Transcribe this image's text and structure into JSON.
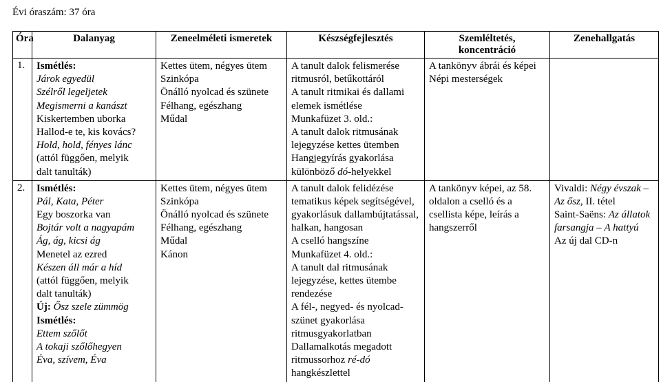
{
  "hours": "Évi óraszám: 37 óra",
  "headers": {
    "ora": "Óra",
    "dalanyag": "Dalanyag",
    "zeneelmelet": "Zeneelméleti ismeretek",
    "keszseg": "Készségfejlesztés",
    "szemleltetes": "Szemléltetés, koncentráció",
    "zenehallgatas": "Zenehallgatás"
  },
  "rows": [
    {
      "num": "1.",
      "dal": [
        {
          "t": "Ismétlés:",
          "b": true
        },
        {
          "t": "Járok egyedül",
          "i": true
        },
        {
          "t": "Szélről legeljetek",
          "i": true
        },
        {
          "t": "Megismerni a kanászt",
          "i": true
        },
        {
          "t": "Kiskertemben uborka"
        },
        {
          "t": "Hallod-e te, kis kovács?"
        },
        {
          "t": "Hold, hold, fényes lánc",
          "i": true
        },
        {
          "t": "(attól függően, melyik"
        },
        {
          "t": "dalt tanulták)"
        }
      ],
      "zen": [
        {
          "t": "Kettes ütem, négyes ütem"
        },
        {
          "t": "Szinkópa"
        },
        {
          "t": "Önálló nyolcad és szünete"
        },
        {
          "t": "Félhang, egészhang"
        },
        {
          "t": "Műdal"
        }
      ],
      "kes": [
        {
          "t": "A tanult dalok felismerése"
        },
        {
          "t": "ritmusról, betűkottáról"
        },
        {
          "t": "A tanult ritmikai és dallami"
        },
        {
          "t": "elemek ismétlése"
        },
        {
          "t": "Munkafüzet 3. old.:"
        },
        {
          "t": "A tanult dalok ritmusának"
        },
        {
          "t": "lejegyzése kettes ütemben"
        },
        {
          "t": "Hangjegyírás gyakorlása"
        },
        {
          "t": "különböző dó-helyekkel",
          "ipart": "különböző "
        }
      ],
      "sze": [
        {
          "t": "A tankönyv ábrái és képei"
        },
        {
          "t": "Népi mesterségek"
        }
      ],
      "hal": []
    },
    {
      "num": "2.",
      "dal": [
        {
          "t": "Ismétlés:",
          "b": true
        },
        {
          "t": "Pál, Kata, Péter",
          "i": true
        },
        {
          "t": "Egy boszorka van"
        },
        {
          "t": "Bojtár volt a nagyapám",
          "i": true
        },
        {
          "t": "Ág, ág, kicsi ág",
          "i": true
        },
        {
          "t": "Menetel az ezred"
        },
        {
          "t": "Készen áll már a híd",
          "i": true
        },
        {
          "t": "(attól függően, melyik"
        },
        {
          "t": "dalt tanulták)"
        },
        {
          "t": "Új: Ősz szele zümmög",
          "bpart": "Új: ",
          "iafter": "Ősz szele zümmög"
        },
        {
          "t": "Ismétlés:",
          "b": true
        },
        {
          "t": "Ettem szőlőt",
          "i": true
        },
        {
          "t": "A tokaji szőlőhegyen",
          "i": true
        },
        {
          "t": "Éva, szívem, Éva",
          "i": true
        }
      ],
      "zen": [
        {
          "t": "Kettes ütem, négyes ütem"
        },
        {
          "t": "Szinkópa"
        },
        {
          "t": "Önálló nyolcad és szünete"
        },
        {
          "t": "Félhang, egészhang"
        },
        {
          "t": "Műdal"
        },
        {
          "t": "Kánon"
        }
      ],
      "kes": [
        {
          "t": "A tanult dalok felidézése"
        },
        {
          "t": "tematikus képek segítségével,"
        },
        {
          "t": "gyakorlásuk dallambújtatással,"
        },
        {
          "t": "halkan, hangosan"
        },
        {
          "t": "A cselló hangszíne"
        },
        {
          "t": "Munkafüzet 4. old.:"
        },
        {
          "t": "A tanult dal ritmusának"
        },
        {
          "t": "lejegyzése, kettes ütembe"
        },
        {
          "t": "rendezése"
        },
        {
          "t": "A fél-, negyed- és nyolcad-"
        },
        {
          "t": "szünet gyakorlása"
        },
        {
          "t": "ritmusgyakorlatban"
        },
        {
          "t": "Dallamalkotás megadott"
        },
        {
          "t": "ritmussorhoz ré-dó",
          "iend": "ré-dó"
        },
        {
          "t": "hangkészlettel"
        }
      ],
      "sze": [
        {
          "t": "A tankönyv képei, az 58."
        },
        {
          "t": "oldalon a cselló és a"
        },
        {
          "t": "csellista képe, leírás a"
        },
        {
          "t": "hangszerről"
        }
      ],
      "hal": [
        {
          "t": "Vivaldi: Négy évszak –",
          "pre": "Vivaldi: ",
          "iafter": "Négy évszak –"
        },
        {
          "t": "Az ősz, II. tétel",
          "iprefix": "Az ősz, ",
          "after": "II. tétel"
        },
        {
          "t": "Saint-Saëns: Az állatok",
          "pre": "Saint-Saëns: ",
          "iafter": "Az állatok"
        },
        {
          "t": "farsangja – A hattyú",
          "iprefix": "farsangja ",
          "after": "– ",
          "iafter2": "A hattyú"
        },
        {
          "t": "Az új dal CD-n"
        }
      ]
    }
  ]
}
